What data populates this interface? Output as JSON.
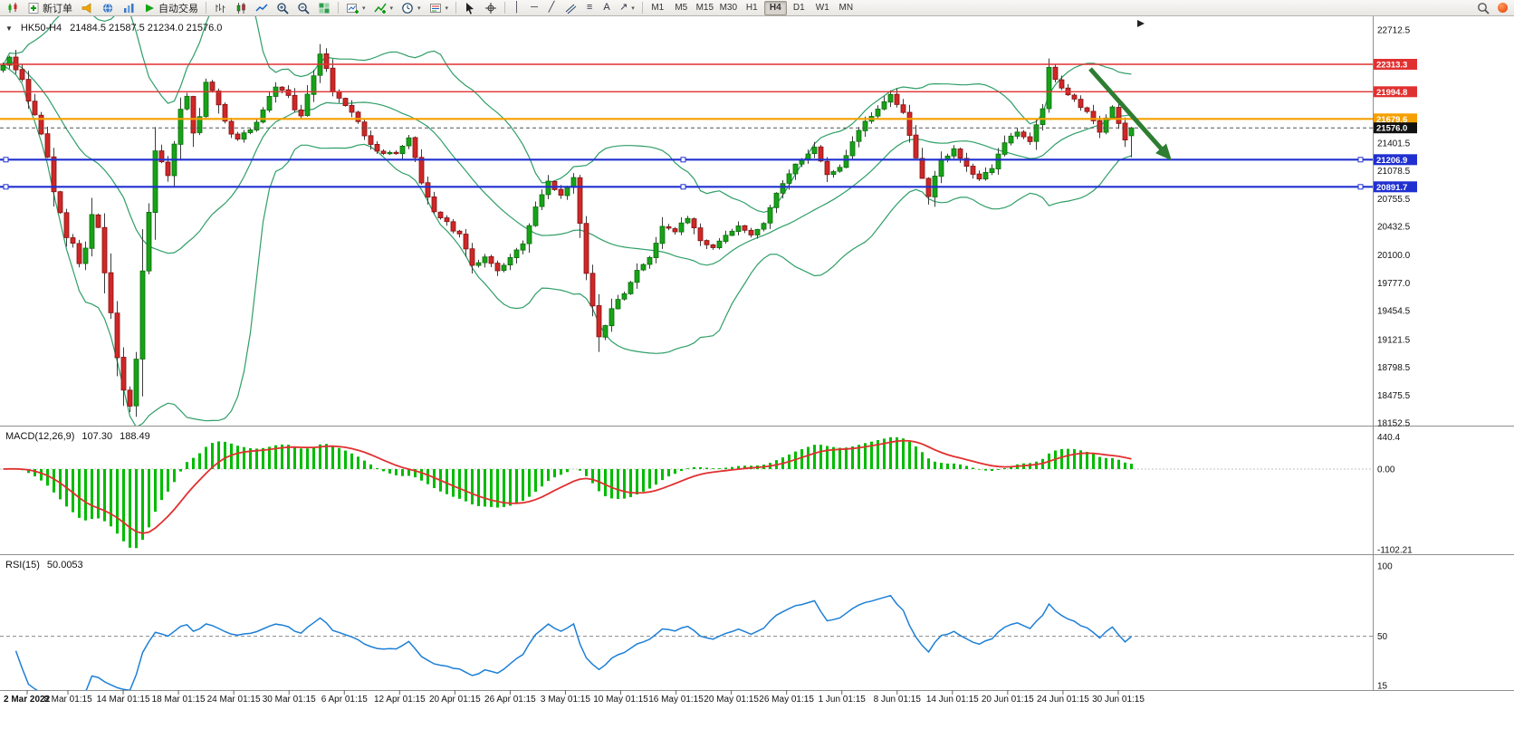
{
  "toolbar": {
    "new_order_label": "新订单",
    "autotrading_label": "自动交易",
    "timeframes": [
      "M1",
      "M5",
      "M15",
      "M30",
      "H1",
      "H4",
      "D1",
      "W1",
      "MN"
    ],
    "active_timeframe": "H4"
  },
  "icons": {
    "collapse_glyph": "▼",
    "dropdown_glyph": "▾",
    "vertical_line_glyph": "│",
    "horizontal_line_glyph": "─",
    "trendline_glyph": "╱",
    "fibonacci_glyph": "≡",
    "text_tool_glyph": "A",
    "arrow_tool_glyph": "↗"
  },
  "chart": {
    "symbol_label": "HK50-H4",
    "ohlc_text": "21484.5 21587.5 21234.0 21576.0",
    "price_axis_ticks": [
      "22712.5",
      "21401.5",
      "21078.5",
      "20755.5",
      "20432.5",
      "20100.0",
      "19777.0",
      "19454.5",
      "19121.5",
      "18798.5",
      "18475.5",
      "18152.5"
    ],
    "time_labels": [
      "2 Mar 2022",
      "8 Mar 01:15",
      "14 Mar 01:15",
      "18 Mar 01:15",
      "24 Mar 01:15",
      "30 Mar 01:15",
      "6 Apr 01:15",
      "12 Apr 01:15",
      "20 Apr 01:15",
      "26 Apr 01:15",
      "3 May 01:15",
      "10 May 01:15",
      "16 May 01:15",
      "20 May 01:15",
      "26 May 01:15",
      "1 Jun 01:15",
      "8 Jun 01:15",
      "14 Jun 01:15",
      "20 Jun 01:15",
      "24 Jun 01:15",
      "30 Jun 01:15"
    ]
  },
  "macd": {
    "title": "MACD(12,26,9)",
    "value_main": "107.30",
    "value_signal": "188.49",
    "axis_labels": [
      "440.4",
      "0.00",
      "-1102.21"
    ],
    "axis_values": [
      440.4,
      0,
      -1102.21
    ]
  },
  "rsi": {
    "title": "RSI(15)",
    "value": "50.0053",
    "axis_labels": [
      "100",
      "50",
      "15"
    ],
    "axis_values": [
      100,
      50,
      15
    ]
  },
  "chart_data": {
    "type": "candlestick",
    "symbol": "HK50",
    "timeframe": "H4",
    "ohlc_last": {
      "open": 21484.5,
      "high": 21587.5,
      "low": 21234.0,
      "close": 21576.0
    },
    "y_range": [
      18152.5,
      22712.5
    ],
    "x_labels": [
      "2 Mar 2022",
      "8 Mar 01:15",
      "14 Mar 01:15",
      "18 Mar 01:15",
      "24 Mar 01:15",
      "30 Mar 01:15",
      "6 Apr 01:15",
      "12 Apr 01:15",
      "20 Apr 01:15",
      "26 Apr 01:15",
      "3 May 01:15",
      "10 May 01:15",
      "16 May 01:15",
      "20 May 01:15",
      "26 May 01:15",
      "1 Jun 01:15",
      "8 Jun 01:15",
      "14 Jun 01:15",
      "20 Jun 01:15",
      "24 Jun 01:15",
      "30 Jun 01:15"
    ],
    "horizontal_levels": [
      {
        "value": 22313.3,
        "color": "red"
      },
      {
        "value": 21994.8,
        "color": "red"
      },
      {
        "value": 21679.6,
        "color": "orange"
      },
      {
        "value": 21576.0,
        "color": "black",
        "role": "current-price"
      },
      {
        "value": 21206.9,
        "color": "blue"
      },
      {
        "value": 20891.7,
        "color": "blue"
      }
    ],
    "level_colors": {
      "red": "#e03131",
      "orange": "#f59f00",
      "blue": "#2030d0",
      "black": "#111111"
    },
    "overlays": [
      {
        "type": "bollinger_bands",
        "color": "#2f9e68"
      },
      {
        "type": "trend_arrow",
        "direction": "down-right",
        "color": "#2e7d32",
        "from_price": 22350,
        "to_price": 21300
      }
    ],
    "indicators": [
      {
        "name": "MACD",
        "params": [
          12,
          26,
          9
        ],
        "current_values": [
          107.3,
          188.49
        ],
        "axis_range": [
          -1102.21,
          440.4
        ],
        "histogram_color": "#00bb00",
        "signal_color": "#e13030"
      },
      {
        "name": "RSI",
        "params": [
          15
        ],
        "current_value": 50.0053,
        "axis_range": [
          15,
          100
        ],
        "line_color": "#1d7fd6"
      }
    ],
    "candle_colors": {
      "up": "#17a317",
      "down": "#d02727"
    },
    "approx_closes": [
      22300,
      22380,
      22260,
      22150,
      21900,
      21750,
      21500,
      21250,
      20850,
      20600,
      20300,
      20250,
      20000,
      20200,
      20550,
      20400,
      19900,
      19450,
      18900,
      18550,
      18350,
      18900,
      19900,
      20600,
      21300,
      21200,
      21000,
      21400,
      21800,
      21950,
      21500,
      21700,
      22100,
      22000,
      21850,
      21650,
      21500,
      21450,
      21500,
      21550,
      21650,
      21800,
      21950,
      22050,
      22000,
      21950,
      21800,
      21720,
      21950,
      22200,
      22420,
      22250,
      22000,
      21900,
      21850,
      21750,
      21650,
      21500,
      21380,
      21320,
      21280,
      21300,
      21280,
      21380,
      21480,
      21250,
      20950,
      20750,
      20600,
      20550,
      20480,
      20400,
      20330,
      20150,
      19960,
      20020,
      20070,
      19980,
      19910,
      19990,
      20070,
      20150,
      20230,
      20430,
      20640,
      20800,
      20960,
      20880,
      20800,
      20900,
      21010,
      20450,
      19900,
      19500,
      19170,
      19300,
      19490,
      19570,
      19640,
      19770,
      19910,
      19990,
      20070,
      20250,
      20430,
      20400,
      20380,
      20460,
      20540,
      20400,
      20280,
      20220,
      20170,
      20250,
      20330,
      20380,
      20430,
      20380,
      20330,
      20400,
      20490,
      20640,
      20800,
      20930,
      21060,
      21140,
      21220,
      21270,
      21330,
      21170,
      21010,
      21060,
      21120,
      21270,
      21430,
      21540,
      21640,
      21720,
      21800,
      21880,
      21960,
      21850,
      21750,
      21480,
      21220,
      21010,
      20800,
      21010,
      21220,
      21270,
      21330,
      21220,
      21120,
      21040,
      20960,
      21040,
      21120,
      21250,
      21380,
      21460,
      21540,
      21480,
      21430,
      21610,
      21800,
      22270,
      22160,
      22060,
      21980,
      21900,
      21820,
      21750,
      21640,
      21540,
      21670,
      21800,
      21610,
      21430,
      21576
    ]
  }
}
